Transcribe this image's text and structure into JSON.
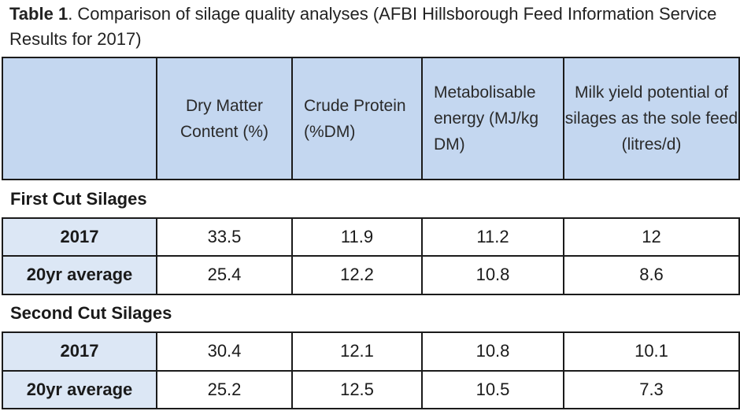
{
  "caption": {
    "lead": "Table 1",
    "text": ". Comparison of silage quality analyses (AFBI Hillsborough Feed Information Service Results for 2017)"
  },
  "table": {
    "headers": [
      "",
      "Dry Matter Content (%)",
      "Crude Protein (%DM)",
      "Metabolisable energy (MJ/kg DM)",
      "Milk yield potential of silages as the sole feed (litres/d)"
    ],
    "sections": [
      {
        "title": "First Cut Silages",
        "rows": [
          {
            "label": "2017",
            "values": [
              "33.5",
              "11.9",
              "11.2",
              "12"
            ]
          },
          {
            "label": "20yr average",
            "values": [
              "25.4",
              "12.2",
              "10.8",
              "8.6"
            ]
          }
        ]
      },
      {
        "title": "Second Cut Silages",
        "rows": [
          {
            "label": "2017",
            "values": [
              "30.4",
              "12.1",
              "10.8",
              "10.1"
            ]
          },
          {
            "label": "20yr average",
            "values": [
              "25.2",
              "12.5",
              "10.5",
              "7.3"
            ]
          }
        ]
      }
    ]
  },
  "colors": {
    "header_bg": "#c4d7f0",
    "label_bg": "#dce7f5",
    "border": "#1b1b1b"
  }
}
